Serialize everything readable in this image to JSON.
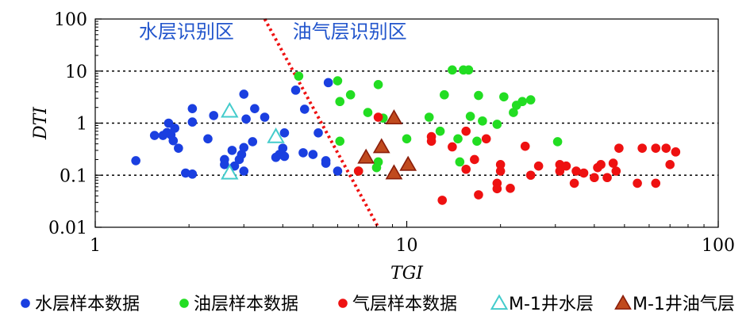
{
  "chart_data": {
    "type": "scatter",
    "xscale": "log",
    "yscale": "log",
    "xlabel": "TGI",
    "ylabel": "DTI",
    "xlim": [
      1,
      100
    ],
    "ylim": [
      0.01,
      100
    ],
    "xticks": [
      1,
      10,
      100
    ],
    "xtick_labels": [
      "1",
      "10",
      "100"
    ],
    "yticks": [
      0.01,
      0.1,
      1,
      10,
      100
    ],
    "ytick_labels": [
      "0.01",
      "0.1",
      "1",
      "10",
      "100"
    ],
    "grid": "dotted horizontal lines at 0.1, 1, 10",
    "divider": {
      "from": [
        3.5,
        100
      ],
      "to": [
        8.1,
        0.01
      ],
      "color": "#ee1111",
      "style": "dotted"
    },
    "regions": [
      {
        "label": "水层识别区",
        "x": 1.38,
        "y": 43
      },
      {
        "label": "油气层识别区",
        "x": 4.3,
        "y": 43
      }
    ],
    "legend_position": "bottom",
    "series": [
      {
        "name": "水层样本数据",
        "marker": "circle",
        "color": "#1a3fe0",
        "points": [
          [
            1.35,
            0.19
          ],
          [
            1.55,
            0.58
          ],
          [
            1.65,
            0.58
          ],
          [
            1.7,
            0.66
          ],
          [
            1.72,
            1.0
          ],
          [
            1.75,
            0.6
          ],
          [
            1.78,
            0.46
          ],
          [
            1.8,
            0.8
          ],
          [
            1.85,
            0.33
          ],
          [
            1.95,
            0.11
          ],
          [
            2.05,
            0.105
          ],
          [
            2.05,
            1.05
          ],
          [
            2.05,
            1.9
          ],
          [
            2.3,
            0.5
          ],
          [
            2.4,
            1.4
          ],
          [
            2.6,
            0.2
          ],
          [
            2.6,
            0.16
          ],
          [
            2.75,
            0.3
          ],
          [
            2.8,
            0.15
          ],
          [
            2.9,
            0.2
          ],
          [
            2.95,
            0.25
          ],
          [
            3.0,
            0.34
          ],
          [
            3.0,
            0.12
          ],
          [
            3.05,
            1.2
          ],
          [
            3.0,
            3.6
          ],
          [
            3.2,
            0.44
          ],
          [
            3.25,
            1.9
          ],
          [
            3.5,
            1.3
          ],
          [
            3.8,
            0.22
          ],
          [
            3.9,
            0.25
          ],
          [
            4.0,
            0.33
          ],
          [
            4.05,
            0.23
          ],
          [
            4.05,
            0.65
          ],
          [
            4.4,
            4.3
          ],
          [
            4.65,
            0.27
          ],
          [
            4.7,
            1.85
          ],
          [
            5.0,
            0.25
          ],
          [
            5.2,
            0.65
          ],
          [
            5.5,
            0.17
          ],
          [
            5.5,
            0.19
          ],
          [
            5.6,
            6.0
          ],
          [
            6.0,
            0.12
          ]
        ]
      },
      {
        "name": "油层样本数据",
        "marker": "circle",
        "color": "#22dd22",
        "points": [
          [
            4.5,
            8.0
          ],
          [
            6.0,
            6.5
          ],
          [
            6.1,
            0.45
          ],
          [
            6.1,
            2.6
          ],
          [
            6.6,
            3.5
          ],
          [
            7.0,
            0.12
          ],
          [
            7.5,
            1.6
          ],
          [
            8.0,
            0.14
          ],
          [
            8.1,
            0.18
          ],
          [
            8.1,
            5.5
          ],
          [
            8.4,
            1.25
          ],
          [
            10.0,
            0.5
          ],
          [
            11.8,
            1.3
          ],
          [
            12.8,
            0.7
          ],
          [
            13.2,
            3.5
          ],
          [
            14.0,
            10.5
          ],
          [
            14.6,
            0.5
          ],
          [
            14.8,
            0.18
          ],
          [
            15.2,
            10.5
          ],
          [
            15.8,
            10.5
          ],
          [
            16.0,
            1.35
          ],
          [
            16.8,
            0.45
          ],
          [
            17.0,
            3.4
          ],
          [
            17.5,
            1.1
          ],
          [
            19.5,
            0.95
          ],
          [
            20.5,
            3.2
          ],
          [
            22.0,
            1.6
          ],
          [
            22.5,
            2.2
          ],
          [
            23.5,
            2.6
          ],
          [
            25.0,
            2.8
          ],
          [
            30.5,
            0.44
          ]
        ]
      },
      {
        "name": "气层样本数据",
        "marker": "circle",
        "color": "#ee1111",
        "points": [
          [
            7.0,
            0.12
          ],
          [
            8.1,
            1.3
          ],
          [
            12.0,
            0.55
          ],
          [
            12.0,
            0.45
          ],
          [
            13.0,
            0.033
          ],
          [
            14.0,
            0.35
          ],
          [
            15.5,
            0.7
          ],
          [
            15.5,
            0.13
          ],
          [
            16.5,
            0.2
          ],
          [
            17.0,
            0.042
          ],
          [
            18.0,
            0.5
          ],
          [
            19.5,
            0.07
          ],
          [
            19.5,
            0.055
          ],
          [
            20.0,
            0.12
          ],
          [
            20.0,
            0.16
          ],
          [
            21.5,
            0.056
          ],
          [
            24.0,
            0.36
          ],
          [
            25.0,
            0.1
          ],
          [
            26.5,
            0.15
          ],
          [
            31.0,
            0.16
          ],
          [
            31.0,
            0.12
          ],
          [
            32.5,
            0.15
          ],
          [
            34.5,
            0.07
          ],
          [
            35.0,
            0.12
          ],
          [
            37.0,
            0.11
          ],
          [
            40.0,
            0.09
          ],
          [
            41.0,
            0.14
          ],
          [
            42.0,
            0.16
          ],
          [
            44.0,
            0.09
          ],
          [
            46.0,
            0.17
          ],
          [
            47.0,
            0.12
          ],
          [
            48.0,
            0.33
          ],
          [
            55.0,
            0.07
          ],
          [
            57.0,
            0.33
          ],
          [
            63.0,
            0.33
          ],
          [
            63.0,
            0.07
          ],
          [
            68.0,
            0.33
          ],
          [
            70.0,
            0.16
          ],
          [
            73.0,
            0.28
          ]
        ]
      },
      {
        "name": "M-1井水层",
        "marker": "triangle-open",
        "color": "#44cccc",
        "points": [
          [
            2.7,
            1.7
          ],
          [
            2.7,
            0.11
          ],
          [
            3.8,
            0.55
          ]
        ]
      },
      {
        "name": "M-1井油气层",
        "marker": "triangle-filled",
        "color": "#c04a1e",
        "points": [
          [
            7.4,
            0.22
          ],
          [
            8.3,
            0.35
          ],
          [
            9.1,
            1.25
          ],
          [
            9.1,
            0.11
          ],
          [
            10.1,
            0.16
          ]
        ]
      }
    ]
  }
}
